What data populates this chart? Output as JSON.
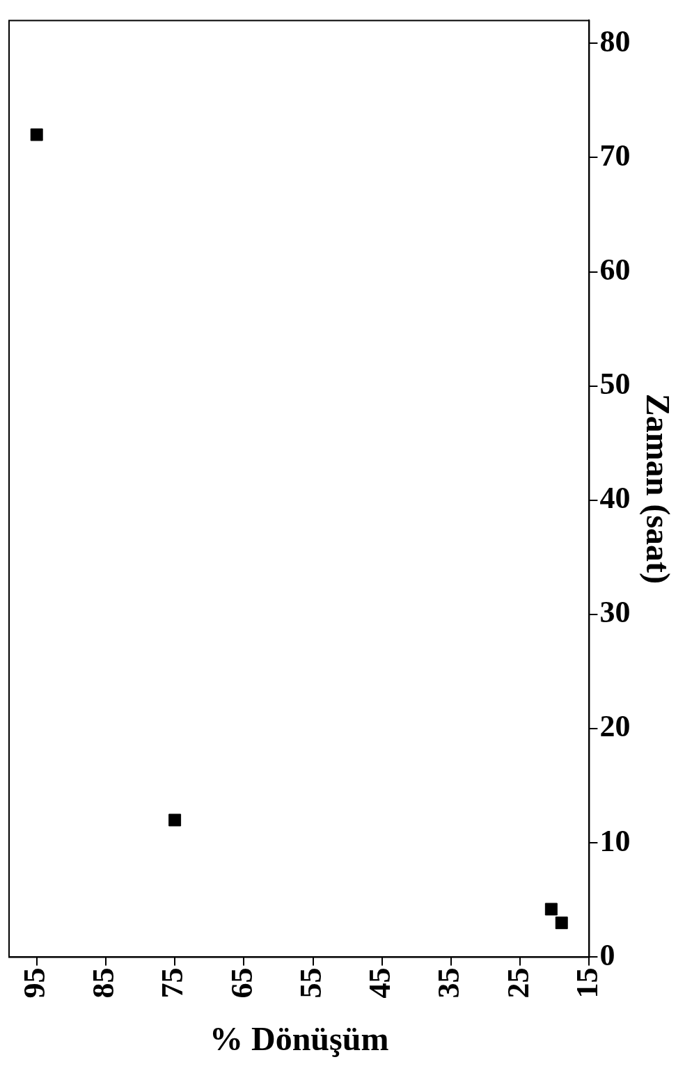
{
  "chart_data": {
    "type": "scatter",
    "xlabel": "% Dönüşüm",
    "ylabel": "Zaman (saat)",
    "x": [
      95,
      75,
      20.5,
      19
    ],
    "series": [
      {
        "color": "#000000",
        "values": [
          72,
          12,
          4.2,
          3
        ]
      }
    ],
    "xlim": [
      99,
      15
    ],
    "xticks": [
      95,
      85,
      75,
      65,
      55,
      45,
      35,
      25,
      15
    ],
    "ylim": [
      0,
      82
    ],
    "yticks": [
      0,
      10,
      20,
      30,
      40,
      50,
      60,
      70,
      80
    ],
    "grid": false,
    "legend": false,
    "marker": "square"
  }
}
